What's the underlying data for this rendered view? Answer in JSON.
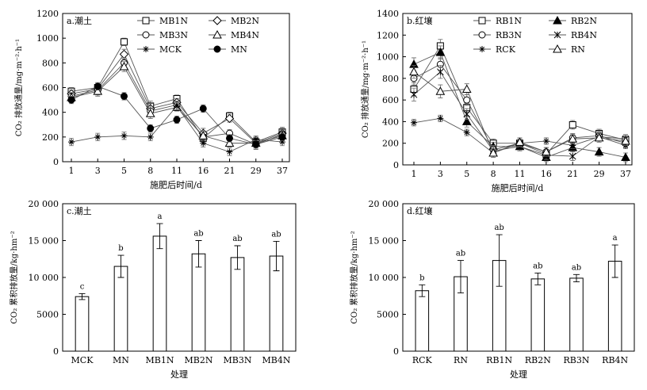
{
  "chart_data": [
    {
      "panel": "a",
      "type": "line",
      "title": "a.潮土",
      "ylabel": "CO₂ 排放通量/mg·m⁻²·h⁻¹",
      "xlabel": "施肥后时间/d",
      "categories": [
        "1",
        "3",
        "5",
        "8",
        "11",
        "16",
        "21",
        "29",
        "37"
      ],
      "ylim": [
        0,
        1200
      ],
      "yticks": [
        "0",
        "200",
        "400",
        "600",
        "800",
        "1000",
        "1200"
      ],
      "legend_position": "top-right",
      "series": [
        {
          "name": "MB1N",
          "marker": "square-open",
          "values": [
            570,
            600,
            970,
            450,
            510,
            190,
            370,
            160,
            240
          ],
          "err": [
            30,
            40,
            30,
            40,
            30,
            40,
            30,
            40,
            40
          ]
        },
        {
          "name": "MB2N",
          "marker": "diamond-open",
          "values": [
            550,
            590,
            870,
            430,
            480,
            230,
            350,
            150,
            230
          ],
          "err": [
            30,
            40,
            40,
            40,
            30,
            40,
            30,
            40,
            40
          ]
        },
        {
          "name": "MB3N",
          "marker": "circle-open",
          "values": [
            530,
            580,
            800,
            410,
            460,
            200,
            230,
            140,
            220
          ],
          "err": [
            30,
            40,
            40,
            40,
            30,
            40,
            30,
            40,
            40
          ]
        },
        {
          "name": "MB4N",
          "marker": "triangle-open",
          "values": [
            520,
            570,
            770,
            390,
            440,
            210,
            150,
            150,
            210
          ],
          "err": [
            30,
            40,
            40,
            40,
            30,
            40,
            30,
            40,
            40
          ]
        },
        {
          "name": "MCK",
          "marker": "star",
          "values": [
            160,
            200,
            210,
            200,
            450,
            150,
            80,
            180,
            160
          ],
          "err": [
            30,
            30,
            30,
            30,
            30,
            30,
            30,
            30,
            30
          ]
        },
        {
          "name": "MN",
          "marker": "circle-filled",
          "values": [
            500,
            610,
            530,
            270,
            340,
            430,
            190,
            140,
            200
          ],
          "err": [
            30,
            30,
            30,
            30,
            30,
            30,
            30,
            30,
            30
          ]
        }
      ]
    },
    {
      "panel": "b",
      "type": "line",
      "title": "b.红壤",
      "ylabel": "CO₂ 排放通量/mg·m⁻²·h⁻¹",
      "xlabel": "施肥后时间/d",
      "categories": [
        "1",
        "3",
        "5",
        "8",
        "11",
        "16",
        "21",
        "29",
        "37"
      ],
      "ylim": [
        0,
        1400
      ],
      "yticks": [
        "0",
        "200",
        "400",
        "600",
        "800",
        "1000",
        "1200",
        "1400"
      ],
      "legend_position": "top-right",
      "series": [
        {
          "name": "RB1N",
          "marker": "square-open",
          "values": [
            700,
            1100,
            530,
            200,
            200,
            100,
            370,
            290,
            230
          ],
          "err": [
            60,
            60,
            50,
            40,
            40,
            40,
            40,
            40,
            40
          ]
        },
        {
          "name": "RB2N",
          "marker": "triangle-filled",
          "values": [
            930,
            1040,
            400,
            170,
            170,
            70,
            160,
            120,
            70
          ],
          "err": [
            60,
            60,
            50,
            40,
            40,
            40,
            40,
            40,
            40
          ]
        },
        {
          "name": "RB3N",
          "marker": "circle-open",
          "values": [
            800,
            930,
            600,
            140,
            200,
            120,
            250,
            270,
            200
          ],
          "err": [
            60,
            60,
            50,
            40,
            40,
            40,
            40,
            40,
            40
          ]
        },
        {
          "name": "RB4N",
          "marker": "x",
          "values": [
            650,
            860,
            470,
            130,
            170,
            90,
            80,
            260,
            240
          ],
          "err": [
            60,
            60,
            50,
            40,
            40,
            40,
            40,
            40,
            40
          ]
        },
        {
          "name": "RCK",
          "marker": "star",
          "values": [
            390,
            430,
            300,
            110,
            200,
            220,
            180,
            260,
            180
          ],
          "err": [
            30,
            30,
            30,
            30,
            30,
            30,
            30,
            30,
            30
          ]
        },
        {
          "name": "RN",
          "marker": "triangle-open",
          "values": [
            860,
            680,
            700,
            110,
            210,
            120,
            240,
            250,
            220
          ],
          "err": [
            60,
            60,
            50,
            40,
            40,
            40,
            40,
            40,
            40
          ]
        }
      ]
    },
    {
      "panel": "c",
      "type": "bar",
      "title": "c.潮土",
      "ylabel": "CO₂ 累积排放量/kg·hm⁻²",
      "xlabel": "处理",
      "categories": [
        "MCK",
        "MN",
        "MB1N",
        "MB2N",
        "MB3N",
        "MB4N"
      ],
      "values": [
        7400,
        11500,
        15600,
        13200,
        12700,
        12900
      ],
      "err": [
        400,
        1500,
        1700,
        1800,
        1600,
        2000
      ],
      "letters": [
        "c",
        "b",
        "a",
        "ab",
        "ab",
        "ab"
      ],
      "ylim": [
        0,
        20000
      ],
      "yticks": [
        "0",
        "5000",
        "10 000",
        "15 000",
        "20 000"
      ]
    },
    {
      "panel": "d",
      "type": "bar",
      "title": "d.红壤",
      "ylabel": "CO₂ 累积排放量/kg·hm⁻²",
      "xlabel": "处理",
      "categories": [
        "RCK",
        "RN",
        "RB1N",
        "RB2N",
        "RB3N",
        "RB4N"
      ],
      "values": [
        8200,
        10100,
        12300,
        9800,
        9900,
        12200
      ],
      "err": [
        800,
        2200,
        3500,
        800,
        500,
        2200
      ],
      "letters": [
        "b",
        "ab",
        "ab",
        "ab",
        "ab",
        "a"
      ],
      "ylim": [
        0,
        20000
      ],
      "yticks": [
        "0",
        "5000",
        "10 000",
        "15 000",
        "20 000"
      ]
    }
  ]
}
